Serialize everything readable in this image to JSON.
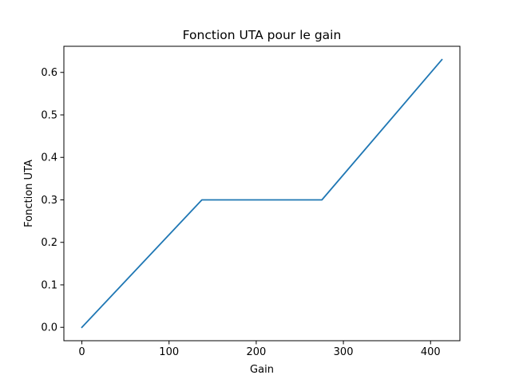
{
  "chart_data": {
    "type": "line",
    "title": "Fonction UTA pour le gain",
    "xlabel": "Gain",
    "ylabel": "Fonction UTA",
    "xlim": [
      -20.65,
      433.65
    ],
    "ylim": [
      -0.0315,
      0.6615
    ],
    "xticks": [
      0,
      100,
      200,
      300,
      400
    ],
    "yticks": [
      0.0,
      0.1,
      0.2,
      0.3,
      0.4,
      0.5,
      0.6
    ],
    "xtick_labels": [
      "0",
      "100",
      "200",
      "300",
      "400"
    ],
    "ytick_labels": [
      "0.0",
      "0.1",
      "0.2",
      "0.3",
      "0.4",
      "0.5",
      "0.6"
    ],
    "grid": false,
    "series": [
      {
        "color": "#1f77b4",
        "x": [
          0,
          137.67,
          275.33,
          413
        ],
        "y": [
          0.0,
          0.3,
          0.3,
          0.63
        ]
      }
    ]
  }
}
